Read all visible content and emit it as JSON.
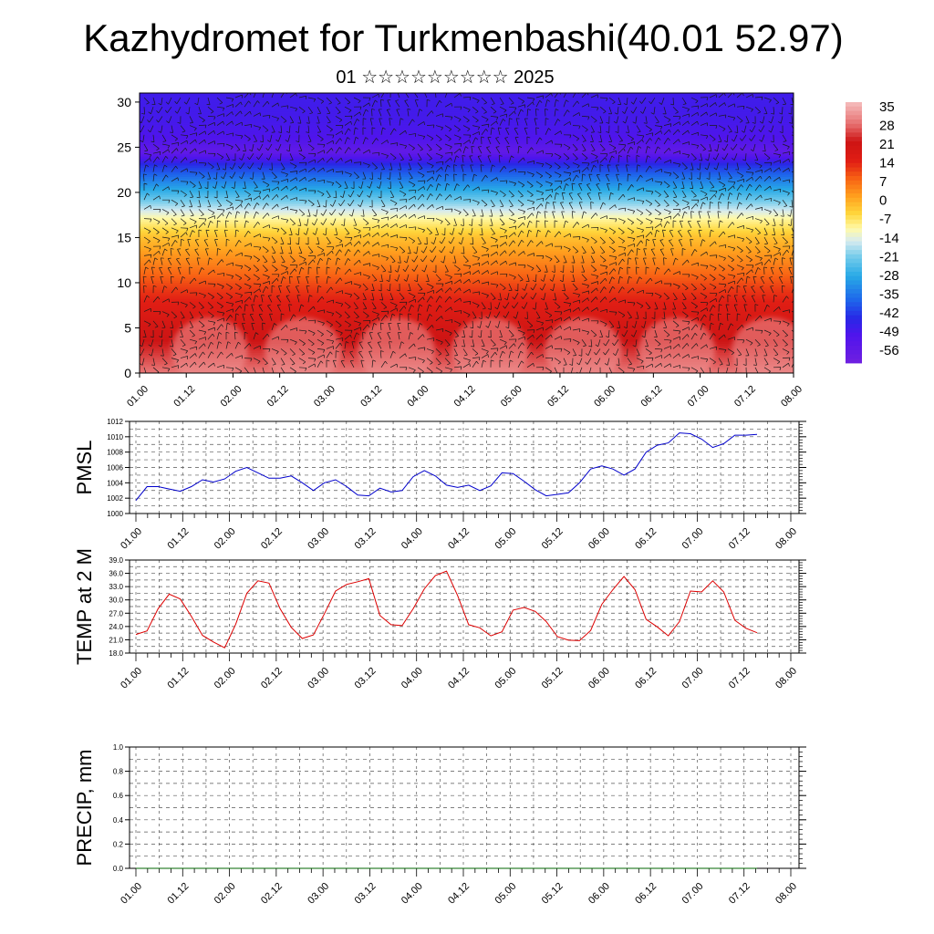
{
  "title": "Kazhydromet for Turkmenbashi(40.01 52.97)",
  "subtitle": "01 ☆☆☆☆☆☆☆☆☆ 2025",
  "time_labels": [
    "01.00",
    "01.12",
    "02.00",
    "02.12",
    "03.00",
    "03.12",
    "04.00",
    "04.12",
    "05.00",
    "05.12",
    "06.00",
    "06.12",
    "07.00",
    "07.12",
    "08.00"
  ],
  "chart_data": [
    {
      "type": "heatmap",
      "name": "temperature-wind-cross-section",
      "ylim": [
        0,
        31
      ],
      "yticks": [
        "0",
        "5",
        "10",
        "15",
        "20",
        "25",
        "30"
      ],
      "colorbar": {
        "labels": [
          "35",
          "28",
          "21",
          "14",
          "7",
          "0",
          "-7",
          "-14",
          "-21",
          "-28",
          "-35",
          "-42",
          "-49",
          "-56"
        ],
        "range": [
          -63,
          42
        ]
      },
      "level_profile": [
        {
          "level": 0,
          "value": 34
        },
        {
          "level": 3,
          "value": 27
        },
        {
          "level": 6,
          "value": 22
        },
        {
          "level": 9,
          "value": 16
        },
        {
          "level": 12,
          "value": 8
        },
        {
          "level": 15,
          "value": 0
        },
        {
          "level": 17,
          "value": -8
        },
        {
          "level": 19,
          "value": -20
        },
        {
          "level": 21,
          "value": -32
        },
        {
          "level": 23,
          "value": -44
        },
        {
          "level": 24.5,
          "value": -58
        },
        {
          "level": 26,
          "value": -52
        },
        {
          "level": 28,
          "value": -50
        },
        {
          "level": 31,
          "value": -49
        }
      ]
    },
    {
      "type": "line",
      "name": "pmsl",
      "ylabel": "PMSL",
      "ylim": [
        1000,
        1012
      ],
      "yticks": [
        "1000",
        "1002",
        "1004",
        "1006",
        "1008",
        "1010",
        "1012"
      ],
      "series": [
        {
          "color": "#0000cc",
          "values": [
            1001.7,
            1003.5,
            1003.5,
            1003.2,
            1002.9,
            1003.5,
            1004.4,
            1004.1,
            1004.5,
            1005.5,
            1006.0,
            1005.3,
            1004.6,
            1004.6,
            1004.9,
            1004.0,
            1003.0,
            1004.0,
            1004.4,
            1003.5,
            1002.4,
            1002.3,
            1003.3,
            1002.8,
            1003.0,
            1004.8,
            1005.6,
            1004.9,
            1003.7,
            1003.4,
            1003.7,
            1003.0,
            1003.6,
            1005.3,
            1005.2,
            1004.2,
            1003.1,
            1002.3,
            1002.5,
            1002.7,
            1004.0,
            1005.8,
            1006.2,
            1005.8,
            1005.0,
            1005.8,
            1008.0,
            1008.9,
            1009.2,
            1010.5,
            1010.4,
            1009.7,
            1008.6,
            1009.1,
            1010.2,
            1010.2,
            1010.3
          ]
        }
      ]
    },
    {
      "type": "line",
      "name": "temp-2m",
      "ylabel": "TEMP at 2 M",
      "ylim": [
        18,
        39
      ],
      "yticks": [
        "18.0",
        "21.0",
        "24.0",
        "27.0",
        "30.0",
        "33.0",
        "36.0",
        "39.0"
      ],
      "series": [
        {
          "color": "#dd0000",
          "values": [
            22.2,
            23.0,
            28.0,
            31.3,
            30.2,
            26.3,
            22.0,
            20.5,
            19.2,
            24.5,
            31.5,
            34.3,
            33.8,
            28.0,
            23.8,
            21.3,
            22.1,
            26.9,
            32.0,
            33.5,
            34.1,
            34.8,
            26.5,
            24.4,
            24.2,
            28.0,
            32.5,
            35.5,
            36.5,
            31.0,
            24.4,
            23.7,
            21.9,
            22.8,
            27.7,
            28.3,
            27.4,
            25.1,
            21.7,
            20.9,
            20.8,
            23.1,
            29.0,
            32.3,
            35.3,
            32.3,
            25.6,
            23.9,
            21.9,
            25.1,
            32.0,
            31.8,
            34.3,
            31.8,
            25.4,
            23.6,
            22.6
          ]
        }
      ]
    },
    {
      "type": "line",
      "name": "precip",
      "ylabel": "PRECIP, mm",
      "ylim": [
        0,
        1
      ],
      "yticks": [
        "0.0",
        "0.2",
        "0.4",
        "0.6",
        "0.8",
        "1.0"
      ],
      "series": [
        {
          "color": "#006400",
          "values": [
            0,
            0,
            0,
            0,
            0,
            0,
            0,
            0,
            0,
            0,
            0,
            0,
            0,
            0,
            0,
            0,
            0,
            0,
            0,
            0,
            0,
            0,
            0,
            0,
            0,
            0,
            0,
            0,
            0,
            0,
            0,
            0,
            0,
            0,
            0,
            0,
            0,
            0,
            0,
            0,
            0,
            0,
            0,
            0,
            0,
            0,
            0,
            0,
            0,
            0,
            0,
            0,
            0,
            0,
            0,
            0,
            0
          ]
        }
      ]
    }
  ]
}
